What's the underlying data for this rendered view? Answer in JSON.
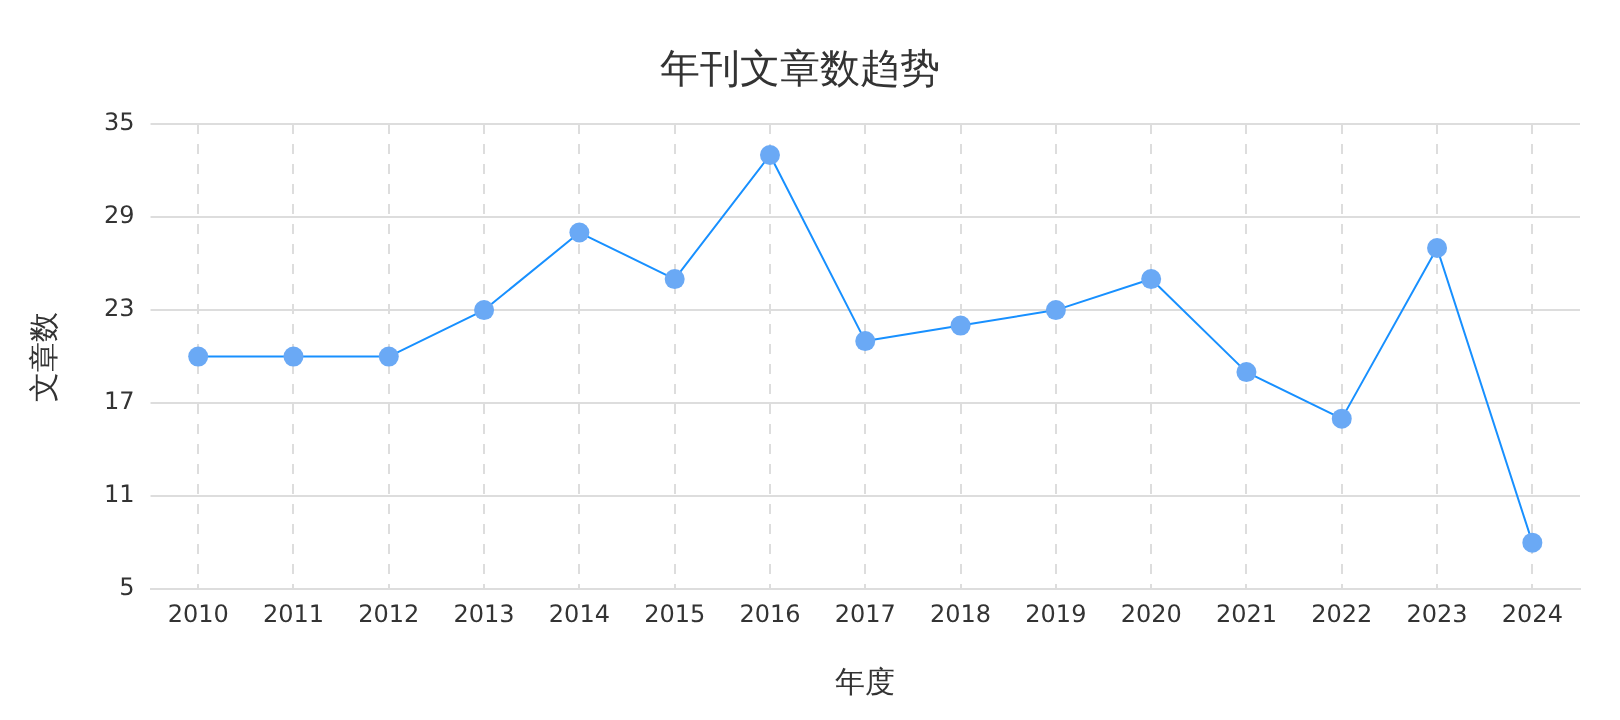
{
  "chart_data": {
    "type": "line",
    "title": "年刊文章数趋势",
    "xlabel": "年度",
    "ylabel": "文章数",
    "categories": [
      "2010",
      "2011",
      "2012",
      "2013",
      "2014",
      "2015",
      "2016",
      "2017",
      "2018",
      "2019",
      "2020",
      "2021",
      "2022",
      "2023",
      "2024"
    ],
    "series": [
      {
        "color": "#1890ff",
        "values": [
          20,
          20,
          20,
          23,
          28,
          25,
          33,
          21,
          22,
          23,
          25,
          19,
          16,
          27,
          8
        ]
      }
    ],
    "ylim": [
      5,
      35
    ],
    "yticks": [
      5,
      11,
      17,
      23,
      29,
      35
    ],
    "grid": true,
    "legend": false,
    "marker": "circle",
    "line_style": "solid"
  }
}
